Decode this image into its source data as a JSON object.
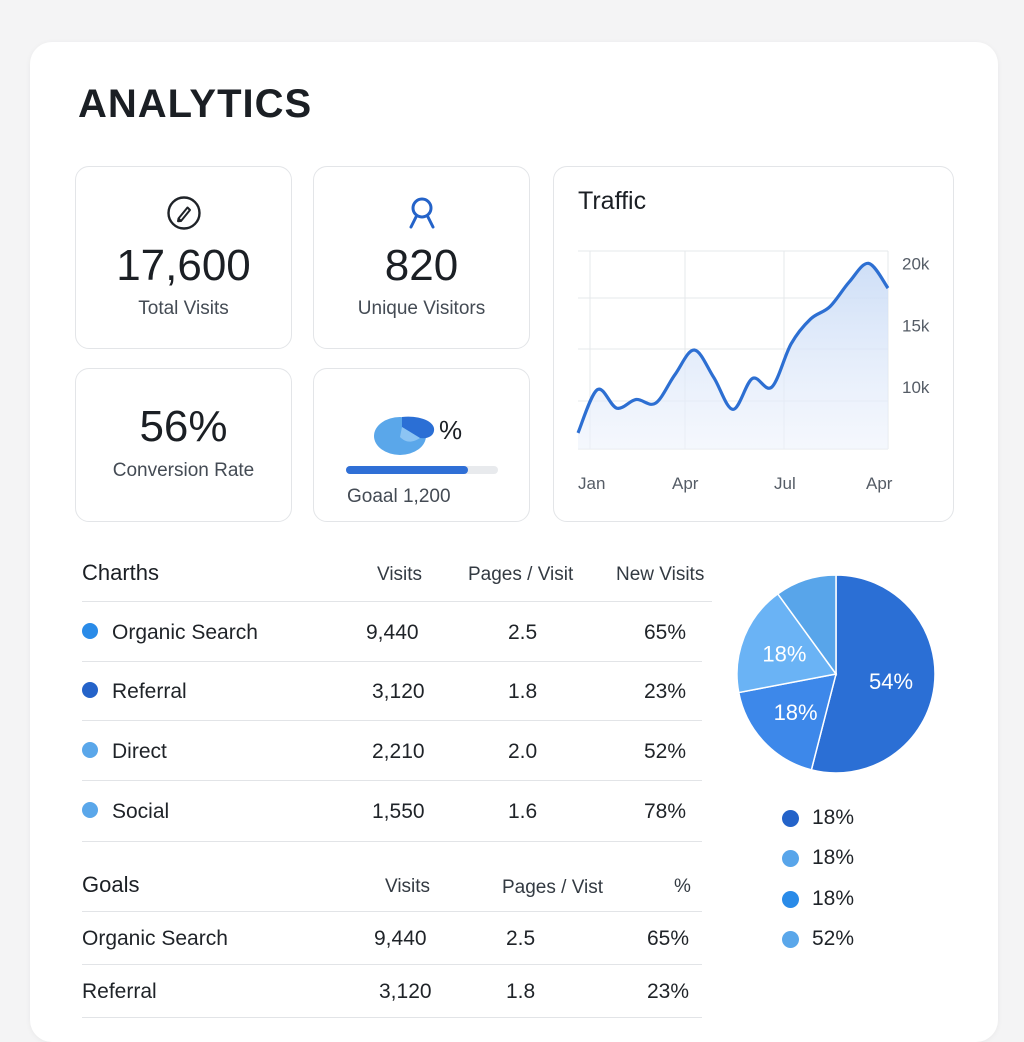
{
  "page_title": "ANALYTICS",
  "stats": {
    "total_visits": {
      "value": "17,600",
      "label": "Total Visits",
      "icon": "pencil-circle-icon"
    },
    "unique_visitors": {
      "value": "820",
      "label": "Unique Visitors",
      "icon": "user-icon"
    },
    "conversion_rate": {
      "value": "56%",
      "label": "Conversion Rate"
    },
    "goal": {
      "symbol": "%",
      "label": "Goaal 1,200",
      "progress": 0.8,
      "icon": "pie-blob-icon"
    }
  },
  "traffic": {
    "title": "Traffic",
    "chart_data": {
      "type": "area",
      "title": "Traffic",
      "x_ticks": [
        "Jan",
        "Apr",
        "Jul",
        "Apr"
      ],
      "y_ticks": [
        "20k",
        "15k",
        "10k"
      ],
      "ylim": [
        5000,
        21000
      ],
      "y_tick_values": [
        20000,
        15000,
        10000
      ],
      "values": [
        6300,
        9800,
        8300,
        9000,
        8700,
        11000,
        13000,
        10800,
        8200,
        10700,
        10000,
        13500,
        15500,
        16500,
        18500,
        20000,
        18000
      ],
      "color": "#2d6fd2"
    }
  },
  "channels": {
    "title": "Charths",
    "headers": [
      "Visits",
      "Pages / Visit",
      "New Visits"
    ],
    "rows": [
      {
        "name": "Organic Search",
        "visits": "9,440",
        "pages": "2.5",
        "new": "65%",
        "color": "#2a8be8"
      },
      {
        "name": "Referral",
        "visits": "3,120",
        "pages": "1.8",
        "new": "23%",
        "color": "#2463c9"
      },
      {
        "name": "Direct",
        "visits": "2,210",
        "pages": "2.0",
        "new": "52%",
        "color": "#5aa7ea"
      },
      {
        "name": "Social",
        "visits": "1,550",
        "pages": "1.6",
        "new": "78%",
        "color": "#5aa7ea"
      }
    ]
  },
  "goals": {
    "title": "Goals",
    "headers": [
      "Visits",
      "Pages / Vist",
      "%"
    ],
    "rows": [
      {
        "name": "Organic Search",
        "visits": "9,440",
        "pages": "2.5",
        "pct": "65%"
      },
      {
        "name": "Referral",
        "visits": "3,120",
        "pages": "1.8",
        "pct": "23%"
      }
    ]
  },
  "pie": {
    "chart_data": {
      "type": "pie",
      "slices": [
        {
          "label": "54%",
          "value": 54,
          "color": "#2b6fd5"
        },
        {
          "label": "18%",
          "value": 18,
          "color": "#3d88ea"
        },
        {
          "label": "18%",
          "value": 18,
          "color": "#6ab3f5"
        },
        {
          "label": "",
          "value": 10,
          "color": "#58a5ea"
        }
      ]
    },
    "legend": [
      {
        "label": "18%",
        "color": "#2463c9"
      },
      {
        "label": "18%",
        "color": "#58a5ea"
      },
      {
        "label": "18%",
        "color": "#2a8be8"
      },
      {
        "label": "52%",
        "color": "#5aa7ea"
      }
    ]
  }
}
